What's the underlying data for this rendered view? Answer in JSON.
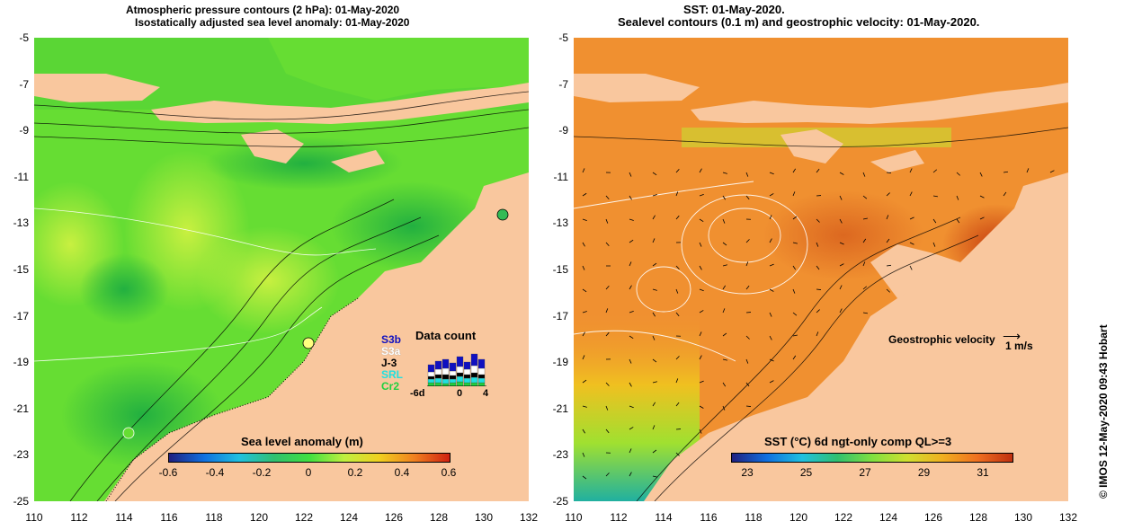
{
  "left_panel": {
    "title_line1": "Atmospheric pressure contours (2 hPa): 01-May-2020",
    "title_line2": "Isostatically adjusted sea level anomaly: 01-May-2020",
    "colorbar": {
      "title": "Sea level anomaly (m)",
      "ticks": [
        "-0.6",
        "-0.4",
        "-0.2",
        "0",
        "0.2",
        "0.4",
        "0.6"
      ]
    },
    "data_count": {
      "title": "Data count",
      "missions": [
        {
          "label": "S3b",
          "color": "#1010c0"
        },
        {
          "label": "S3a",
          "color": "#ffffff"
        },
        {
          "label": "J-3",
          "color": "#000000"
        },
        {
          "label": "SRL",
          "color": "#20e0e0"
        },
        {
          "label": "Cr2",
          "color": "#20d040"
        }
      ],
      "x_ticks": [
        "-6d",
        "0",
        "4"
      ]
    }
  },
  "right_panel": {
    "title_line1": "SST: 01-May-2020.",
    "title_line2": "Sealevel contours (0.1 m) and geostrophic velocity: 01-May-2020.",
    "colorbar": {
      "title": "SST (°C) 6d ngt-only comp QL>=3",
      "ticks": [
        "23",
        "25",
        "27",
        "29",
        "31"
      ]
    },
    "velocity_legend": {
      "label": "Geostrophic velocity",
      "scale": "1 m/s"
    }
  },
  "axes": {
    "y_ticks": [
      "-5",
      "-7",
      "-9",
      "-11",
      "-13",
      "-15",
      "-17",
      "-19",
      "-21",
      "-23",
      "-25"
    ],
    "x_ticks": [
      "110",
      "112",
      "114",
      "116",
      "118",
      "120",
      "122",
      "124",
      "126",
      "128",
      "130",
      "132"
    ]
  },
  "credit": "© IMOS 12-May-2020 09:43 Hobart",
  "colors": {
    "land": "#f9c79e",
    "sla_ocean": "#66dd33",
    "sst_ocean": "#f09030"
  }
}
